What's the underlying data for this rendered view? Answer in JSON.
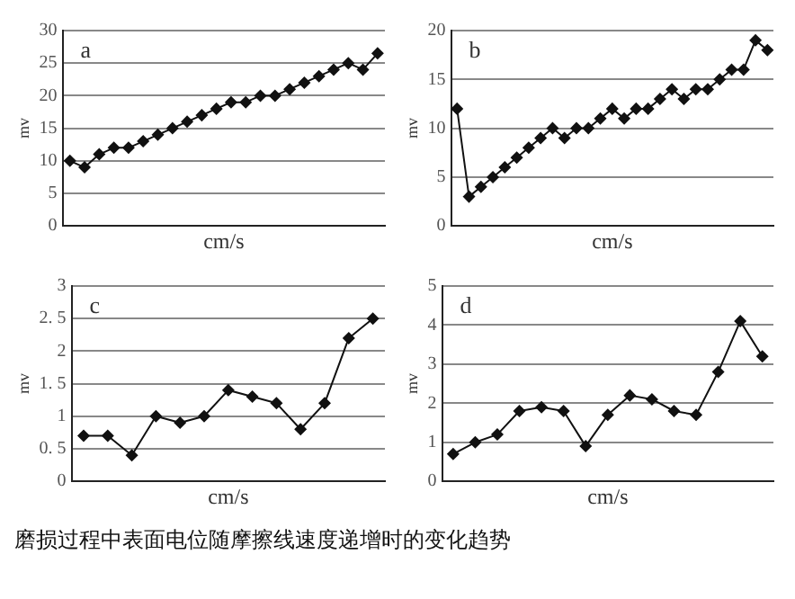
{
  "chart_data": [
    {
      "type": "line",
      "title": "a",
      "xlabel": "cm/s",
      "ylabel": "mv",
      "categories": [
        null,
        null,
        null,
        null,
        null,
        null,
        null,
        null,
        null,
        null,
        null,
        null,
        null,
        null,
        null,
        null,
        null,
        null,
        null,
        null,
        null,
        null
      ],
      "series": [
        {
          "color": "#111111",
          "values": [
            10,
            9,
            11,
            12,
            12,
            13,
            14,
            15,
            16,
            17,
            18,
            19,
            19,
            20,
            20,
            21,
            22,
            23,
            24,
            25,
            24,
            26.5
          ]
        }
      ],
      "ylim": [
        0,
        30
      ],
      "yticks": [
        0,
        5,
        10,
        15,
        20,
        25,
        30
      ],
      "grid": "y",
      "marker": "diamond",
      "legend": false
    },
    {
      "type": "line",
      "title": "b",
      "xlabel": "cm/s",
      "ylabel": "mv",
      "categories": [
        null,
        null,
        null,
        null,
        null,
        null,
        null,
        null,
        null,
        null,
        null,
        null,
        null,
        null,
        null,
        null,
        null,
        null,
        null,
        null,
        null,
        null,
        null,
        null,
        null,
        null,
        null
      ],
      "series": [
        {
          "color": "#111111",
          "values": [
            12,
            3,
            4,
            5,
            6,
            7,
            8,
            9,
            10,
            9,
            10,
            10,
            11,
            12,
            11,
            12,
            12,
            13,
            14,
            13,
            14,
            14,
            15,
            16,
            16,
            19,
            18
          ]
        }
      ],
      "ylim": [
        0,
        20
      ],
      "yticks": [
        0,
        5,
        10,
        15,
        20
      ],
      "grid": "y",
      "marker": "diamond",
      "legend": false
    },
    {
      "type": "line",
      "title": "c",
      "xlabel": "cm/s",
      "ylabel": "mv",
      "categories": [
        null,
        null,
        null,
        null,
        null,
        null,
        null,
        null,
        null,
        null,
        null,
        null,
        null
      ],
      "series": [
        {
          "color": "#111111",
          "values": [
            0.7,
            0.7,
            0.4,
            1.0,
            0.9,
            1.0,
            1.4,
            1.3,
            1.2,
            0.8,
            1.2,
            2.2,
            2.5
          ]
        }
      ],
      "ylim": [
        0,
        3
      ],
      "yticks": [
        0,
        {
          "value": 0.5,
          "label": "0. 5"
        },
        1,
        {
          "value": 1.5,
          "label": "1. 5"
        },
        2,
        {
          "value": 2.5,
          "label": "2. 5"
        },
        3
      ],
      "grid": "y",
      "marker": "diamond",
      "legend": false
    },
    {
      "type": "line",
      "title": "d",
      "xlabel": "cm/s",
      "ylabel": "mv",
      "categories": [
        null,
        null,
        null,
        null,
        null,
        null,
        null,
        null,
        null,
        null,
        null,
        null,
        null,
        null,
        null
      ],
      "series": [
        {
          "color": "#111111",
          "values": [
            0.7,
            1.0,
            1.2,
            1.8,
            1.9,
            1.8,
            0.9,
            1.7,
            2.2,
            2.1,
            1.8,
            1.7,
            2.8,
            4.1,
            3.2
          ]
        }
      ],
      "ylim": [
        0,
        5
      ],
      "yticks": [
        0,
        1,
        2,
        3,
        4,
        5
      ],
      "grid": "y",
      "marker": "diamond",
      "legend": false,
      "annotations": [
        "磨损过程中表面电位随摩擦线速度递增时的变化趋势"
      ]
    }
  ]
}
